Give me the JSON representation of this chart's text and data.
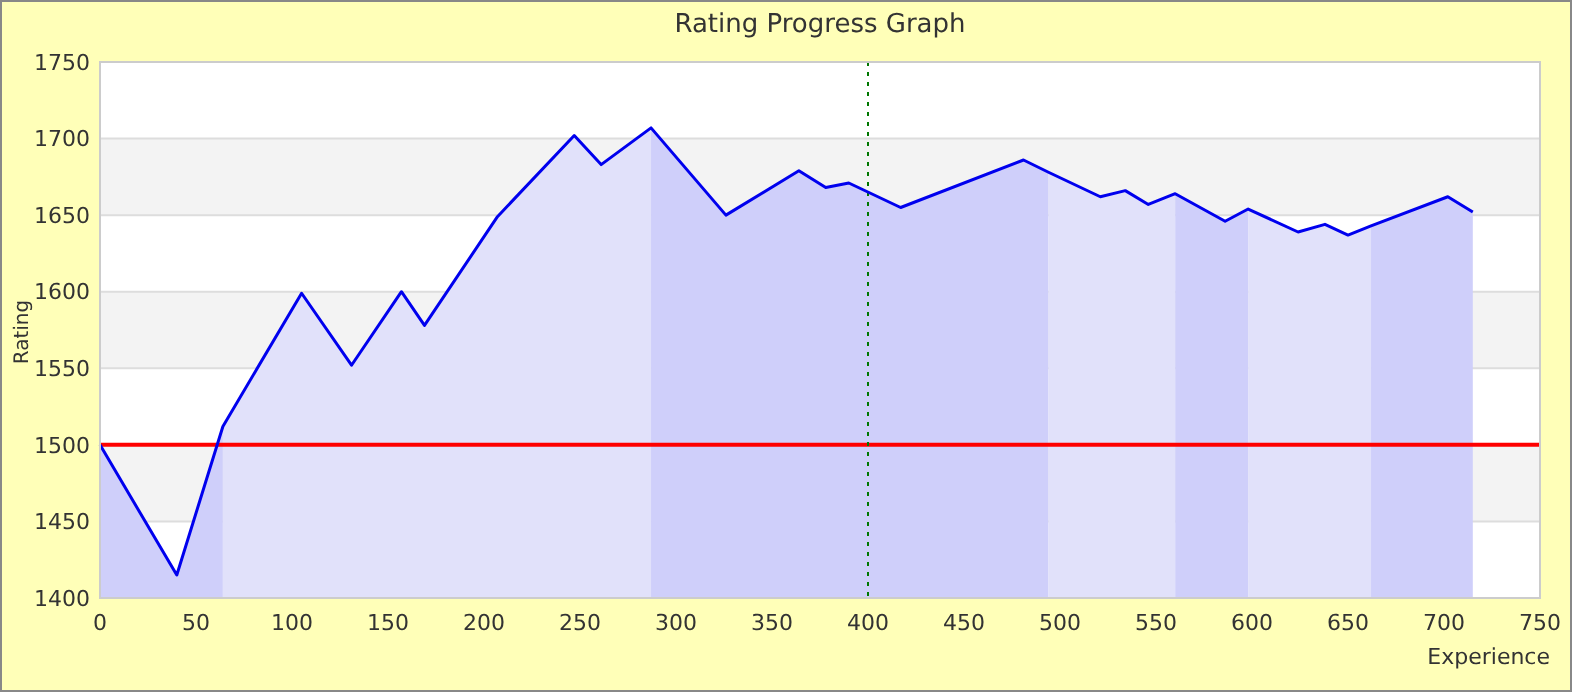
{
  "chart_data": {
    "type": "line",
    "title": "Rating Progress Graph",
    "xlabel": "Experience",
    "ylabel": "Rating",
    "xlim": [
      0,
      750
    ],
    "xticks": [
      0,
      50,
      100,
      150,
      200,
      250,
      300,
      350,
      400,
      450,
      500,
      550,
      600,
      650,
      700,
      750
    ],
    "ylim": [
      1400,
      1750
    ],
    "yticks": [
      1400,
      1450,
      1500,
      1550,
      1600,
      1650,
      1700,
      1750
    ],
    "grid": "y",
    "series": [
      {
        "type": "area",
        "color": "#cfcffa",
        "x": [
          0,
          40,
          64
        ],
        "values": [
          1500,
          1415,
          1512
        ]
      },
      {
        "type": "area",
        "color": "#e1e1fa",
        "x": [
          64,
          105,
          131,
          157,
          169,
          207,
          247,
          261,
          287
        ],
        "values": [
          1512,
          1599,
          1552,
          1600,
          1578,
          1649,
          1702,
          1683,
          1707
        ]
      },
      {
        "type": "area",
        "color": "#cfcffa",
        "x": [
          287,
          326,
          364,
          378,
          390,
          417,
          481,
          494
        ],
        "values": [
          1707,
          1650,
          1679,
          1668,
          1671,
          1655,
          1686,
          1678
        ]
      },
      {
        "type": "area",
        "color": "#e1e1fa",
        "x": [
          494,
          521,
          534,
          546,
          560
        ],
        "values": [
          1678,
          1662,
          1666,
          1657,
          1664
        ]
      },
      {
        "type": "area",
        "color": "#cfcffa",
        "x": [
          560,
          586,
          598
        ],
        "values": [
          1664,
          1646,
          1654
        ]
      },
      {
        "type": "area",
        "color": "#e1e1fa",
        "x": [
          598,
          624,
          638,
          650,
          662
        ],
        "values": [
          1654,
          1639,
          1644,
          1637,
          1643
        ]
      },
      {
        "type": "area",
        "color": "#cfcffa",
        "x": [
          662,
          702,
          715
        ],
        "values": [
          1643,
          1662,
          1652
        ]
      },
      {
        "color": "#0000ee",
        "x": [
          0,
          40,
          64,
          105,
          131,
          157,
          169,
          207,
          247,
          261,
          287,
          326,
          364,
          378,
          390,
          417,
          481,
          494,
          521,
          534,
          546,
          560,
          586,
          598,
          624,
          638,
          650,
          662,
          702,
          715
        ],
        "values": [
          1500,
          1415,
          1512,
          1599,
          1552,
          1600,
          1578,
          1649,
          1702,
          1683,
          1707,
          1650,
          1679,
          1668,
          1671,
          1655,
          1686,
          1678,
          1662,
          1666,
          1657,
          1664,
          1646,
          1654,
          1639,
          1644,
          1637,
          1643,
          1662,
          1652
        ]
      }
    ],
    "ref_lines": [
      {
        "axis": "y",
        "value": 1500,
        "color": "#ff0000",
        "line_style": "solid"
      },
      {
        "axis": "x",
        "value": 400,
        "color": "#007700",
        "line_style": "dotted"
      }
    ]
  }
}
